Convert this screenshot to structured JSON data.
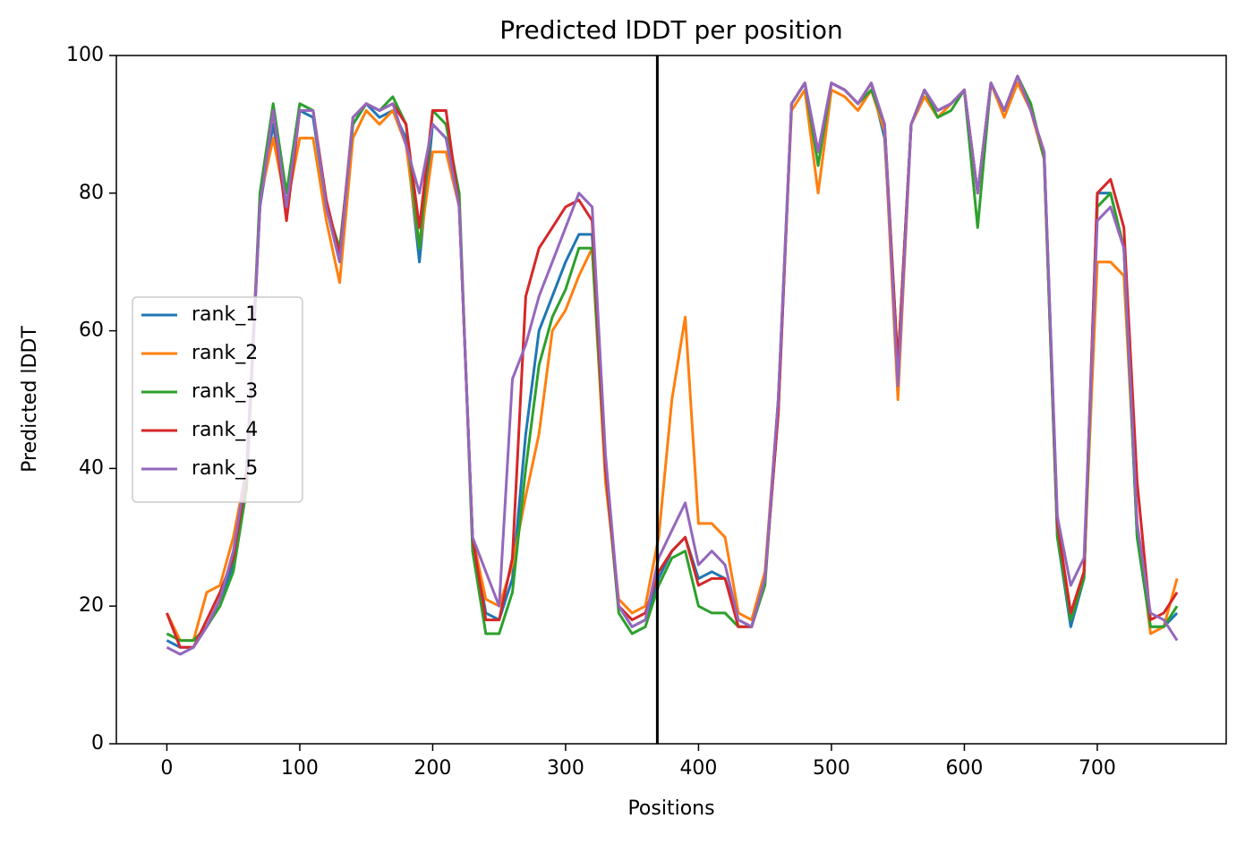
{
  "chart_data": {
    "type": "line",
    "title": "Predicted lDDT per position",
    "xlabel": "Positions",
    "ylabel": "Predicted lDDT",
    "xlim": [
      -38,
      797
    ],
    "ylim": [
      0,
      100
    ],
    "xticks": [
      0,
      100,
      200,
      300,
      400,
      500,
      600,
      700
    ],
    "yticks": [
      0,
      20,
      40,
      60,
      80,
      100
    ],
    "vline": 369,
    "legend": "center left",
    "x": [
      0,
      10,
      20,
      30,
      40,
      50,
      60,
      70,
      80,
      90,
      100,
      110,
      120,
      130,
      140,
      150,
      160,
      170,
      180,
      190,
      200,
      210,
      220,
      230,
      240,
      250,
      260,
      270,
      280,
      290,
      300,
      310,
      320,
      330,
      340,
      350,
      360,
      370,
      380,
      390,
      400,
      410,
      420,
      430,
      440,
      450,
      460,
      470,
      480,
      490,
      500,
      510,
      520,
      530,
      540,
      550,
      560,
      570,
      580,
      590,
      600,
      610,
      620,
      630,
      640,
      650,
      660,
      670,
      680,
      690,
      700,
      710,
      720,
      730,
      740,
      750,
      760
    ],
    "series": [
      {
        "name": "rank_1",
        "color": "#1f77b4",
        "values": [
          15,
          14,
          14,
          17,
          21,
          26,
          38,
          78,
          90,
          78,
          92,
          91,
          78,
          70,
          90,
          93,
          91,
          92,
          88,
          70,
          90,
          88,
          78,
          30,
          19,
          18,
          24,
          45,
          60,
          65,
          70,
          74,
          74,
          40,
          20,
          17,
          18,
          24,
          28,
          30,
          24,
          25,
          24,
          18,
          17,
          24,
          48,
          93,
          96,
          86,
          96,
          95,
          93,
          96,
          88,
          55,
          90,
          95,
          92,
          93,
          95,
          80,
          96,
          92,
          97,
          92,
          85,
          30,
          17,
          24,
          80,
          80,
          72,
          30,
          17,
          17,
          19
        ]
      },
      {
        "name": "rank_2",
        "color": "#ff7f0e",
        "values": [
          19,
          15,
          15,
          22,
          23,
          30,
          40,
          79,
          88,
          78,
          88,
          88,
          76,
          67,
          88,
          92,
          90,
          92,
          87,
          72,
          86,
          86,
          78,
          30,
          21,
          20,
          26,
          36,
          45,
          60,
          63,
          68,
          72,
          38,
          21,
          19,
          20,
          30,
          50,
          62,
          32,
          32,
          30,
          19,
          18,
          25,
          50,
          92,
          95,
          80,
          95,
          94,
          92,
          95,
          89,
          50,
          90,
          94,
          91,
          93,
          95,
          80,
          96,
          91,
          96,
          92,
          85,
          32,
          19,
          25,
          70,
          70,
          68,
          32,
          16,
          17,
          24
        ]
      },
      {
        "name": "rank_3",
        "color": "#2ca02c",
        "values": [
          16,
          15,
          15,
          17,
          20,
          25,
          37,
          80,
          93,
          80,
          93,
          92,
          78,
          72,
          90,
          93,
          92,
          94,
          90,
          72,
          92,
          90,
          80,
          28,
          16,
          16,
          22,
          40,
          55,
          62,
          66,
          72,
          72,
          40,
          19,
          16,
          17,
          23,
          27,
          28,
          20,
          19,
          19,
          17,
          17,
          23,
          50,
          93,
          96,
          84,
          96,
          95,
          93,
          95,
          90,
          55,
          90,
          95,
          91,
          92,
          95,
          75,
          96,
          92,
          97,
          93,
          85,
          30,
          18,
          24,
          78,
          80,
          72,
          30,
          17,
          17,
          20
        ]
      },
      {
        "name": "rank_4",
        "color": "#d62728",
        "values": [
          19,
          14,
          14,
          18,
          22,
          27,
          39,
          78,
          92,
          76,
          92,
          92,
          79,
          71,
          91,
          93,
          92,
          93,
          90,
          75,
          92,
          92,
          78,
          30,
          18,
          18,
          27,
          65,
          72,
          75,
          78,
          79,
          76,
          40,
          20,
          18,
          19,
          25,
          28,
          30,
          23,
          24,
          24,
          17,
          17,
          24,
          48,
          93,
          96,
          86,
          96,
          95,
          93,
          96,
          90,
          55,
          90,
          95,
          92,
          93,
          95,
          80,
          96,
          92,
          97,
          92,
          86,
          32,
          19,
          25,
          80,
          82,
          75,
          38,
          18,
          19,
          22
        ]
      },
      {
        "name": "rank_5",
        "color": "#9467bd",
        "values": [
          14,
          13,
          14,
          17,
          21,
          28,
          40,
          78,
          92,
          78,
          92,
          92,
          78,
          70,
          91,
          93,
          92,
          93,
          87,
          80,
          90,
          88,
          78,
          30,
          25,
          20,
          53,
          58,
          65,
          70,
          75,
          80,
          78,
          42,
          20,
          17,
          18,
          27,
          31,
          35,
          26,
          28,
          26,
          18,
          17,
          24,
          50,
          93,
          96,
          86,
          96,
          95,
          93,
          96,
          90,
          52,
          90,
          95,
          92,
          93,
          95,
          80,
          96,
          92,
          97,
          92,
          86,
          33,
          23,
          27,
          76,
          78,
          72,
          32,
          19,
          18,
          15
        ]
      }
    ]
  }
}
